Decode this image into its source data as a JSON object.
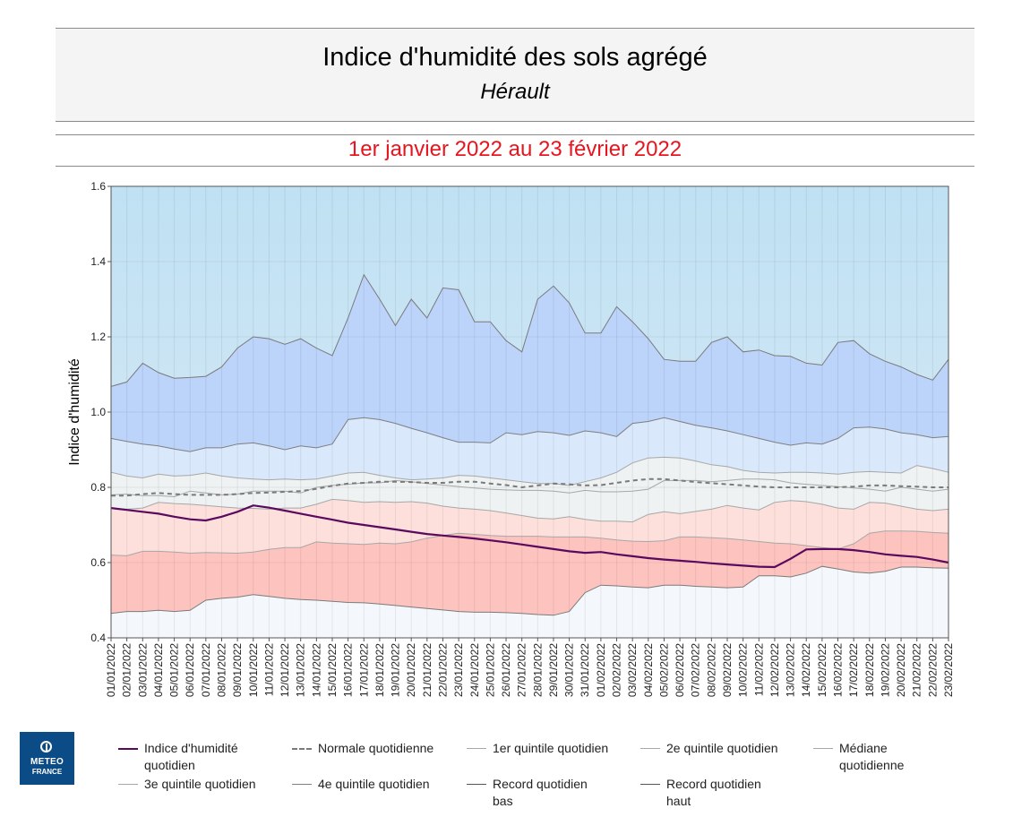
{
  "header": {
    "title": "Indice d'humidité des sols agrégé",
    "subtitle": "Hérault",
    "period": "1er janvier 2022 au 23 février 2022"
  },
  "logo": {
    "line1": "METEO",
    "line2": "FRANCE"
  },
  "colors": {
    "index": "#5a0a5e",
    "normal": "#7a7a7a",
    "band_record_low": "#f4f7fb",
    "band_q1": "#fdc3bf",
    "band_q2": "#fde0dc",
    "band_median": "#eef2f2",
    "band_q3": "#d9e8fb",
    "band_q4": "#bcd3fa",
    "band_record_high_top": "#bfe1f3",
    "band_record_high_bottom": "#dbeaf5"
  },
  "chart_data": {
    "type": "area",
    "ylabel": "Indice d'humidité",
    "ylim": [
      0.4,
      1.6
    ],
    "yticks": [
      "0.4",
      "0.6",
      "0.8",
      "1.0",
      "1.2",
      "1.4",
      "1.6"
    ],
    "x": [
      "01/01/2022",
      "02/01/2022",
      "03/01/2022",
      "04/01/2022",
      "05/01/2022",
      "06/01/2022",
      "07/01/2022",
      "08/01/2022",
      "09/01/2022",
      "10/01/2022",
      "11/01/2022",
      "12/01/2022",
      "13/01/2022",
      "14/01/2022",
      "15/01/2022",
      "16/01/2022",
      "17/01/2022",
      "18/01/2022",
      "19/01/2022",
      "20/01/2022",
      "21/01/2022",
      "22/01/2022",
      "23/01/2022",
      "24/01/2022",
      "25/01/2022",
      "26/01/2022",
      "27/01/2022",
      "28/01/2022",
      "29/01/2022",
      "30/01/2022",
      "31/01/2022",
      "01/02/2022",
      "02/02/2022",
      "03/02/2022",
      "04/02/2022",
      "05/02/2022",
      "06/02/2022",
      "07/02/2022",
      "08/02/2022",
      "09/02/2022",
      "10/02/2022",
      "11/02/2022",
      "12/02/2022",
      "13/02/2022",
      "14/02/2022",
      "15/02/2022",
      "16/02/2022",
      "17/02/2022",
      "18/02/2022",
      "19/02/2022",
      "20/02/2022",
      "21/02/2022",
      "22/02/2022",
      "23/02/2022"
    ],
    "series": [
      {
        "name": "Record quotidien bas",
        "key": "record_low",
        "values": [
          0.465,
          0.47,
          0.47,
          0.473,
          0.47,
          0.473,
          0.5,
          0.505,
          0.508,
          0.515,
          0.51,
          0.505,
          0.502,
          0.5,
          0.497,
          0.494,
          0.493,
          0.49,
          0.486,
          0.482,
          0.478,
          0.474,
          0.47,
          0.468,
          0.468,
          0.467,
          0.465,
          0.462,
          0.46,
          0.47,
          0.52,
          0.54,
          0.538,
          0.535,
          0.533,
          0.54,
          0.54,
          0.537,
          0.535,
          0.533,
          0.535,
          0.565,
          0.565,
          0.562,
          0.572,
          0.59,
          0.583,
          0.575,
          0.572,
          0.577,
          0.588,
          0.588,
          0.586,
          0.585
        ]
      },
      {
        "name": "1er quintile quotidien",
        "key": "q1",
        "values": [
          0.62,
          0.618,
          0.63,
          0.63,
          0.628,
          0.625,
          0.627,
          0.626,
          0.625,
          0.628,
          0.635,
          0.64,
          0.64,
          0.655,
          0.652,
          0.65,
          0.648,
          0.652,
          0.65,
          0.655,
          0.665,
          0.672,
          0.678,
          0.675,
          0.672,
          0.67,
          0.67,
          0.67,
          0.668,
          0.668,
          0.668,
          0.665,
          0.66,
          0.657,
          0.656,
          0.658,
          0.668,
          0.668,
          0.666,
          0.664,
          0.66,
          0.656,
          0.652,
          0.65,
          0.645,
          0.64,
          0.636,
          0.65,
          0.678,
          0.684,
          0.684,
          0.683,
          0.68,
          0.678
        ]
      },
      {
        "name": "2e quintile quotidien",
        "key": "q2",
        "values": [
          0.745,
          0.742,
          0.745,
          0.76,
          0.757,
          0.755,
          0.752,
          0.748,
          0.745,
          0.744,
          0.742,
          0.745,
          0.745,
          0.755,
          0.768,
          0.765,
          0.76,
          0.762,
          0.76,
          0.762,
          0.758,
          0.75,
          0.745,
          0.742,
          0.738,
          0.732,
          0.725,
          0.718,
          0.716,
          0.722,
          0.715,
          0.71,
          0.71,
          0.708,
          0.728,
          0.735,
          0.73,
          0.736,
          0.742,
          0.752,
          0.745,
          0.74,
          0.76,
          0.765,
          0.762,
          0.755,
          0.745,
          0.742,
          0.76,
          0.758,
          0.75,
          0.742,
          0.738,
          0.742
        ]
      },
      {
        "name": "Médiane quotidienne",
        "key": "median",
        "values": [
          0.78,
          0.782,
          0.778,
          0.778,
          0.775,
          0.79,
          0.785,
          0.78,
          0.782,
          0.79,
          0.79,
          0.79,
          0.785,
          0.8,
          0.805,
          0.808,
          0.812,
          0.812,
          0.818,
          0.815,
          0.81,
          0.806,
          0.802,
          0.798,
          0.795,
          0.793,
          0.792,
          0.792,
          0.79,
          0.785,
          0.792,
          0.788,
          0.788,
          0.79,
          0.795,
          0.818,
          0.818,
          0.818,
          0.815,
          0.818,
          0.822,
          0.822,
          0.82,
          0.812,
          0.808,
          0.805,
          0.802,
          0.798,
          0.795,
          0.79,
          0.8,
          0.795,
          0.79,
          0.795
        ]
      },
      {
        "name": "3e quintile quotidien",
        "key": "q3",
        "values": [
          0.84,
          0.83,
          0.825,
          0.835,
          0.83,
          0.832,
          0.838,
          0.83,
          0.825,
          0.822,
          0.82,
          0.822,
          0.82,
          0.822,
          0.83,
          0.838,
          0.84,
          0.832,
          0.825,
          0.82,
          0.822,
          0.825,
          0.832,
          0.83,
          0.825,
          0.82,
          0.815,
          0.81,
          0.81,
          0.805,
          0.815,
          0.825,
          0.84,
          0.865,
          0.878,
          0.88,
          0.878,
          0.87,
          0.86,
          0.855,
          0.845,
          0.84,
          0.838,
          0.84,
          0.84,
          0.838,
          0.835,
          0.84,
          0.842,
          0.84,
          0.838,
          0.858,
          0.85,
          0.84
        ]
      },
      {
        "name": "4e quintile quotidien",
        "key": "q4",
        "values": [
          0.93,
          0.922,
          0.915,
          0.91,
          0.902,
          0.895,
          0.905,
          0.905,
          0.915,
          0.918,
          0.91,
          0.9,
          0.91,
          0.905,
          0.915,
          0.98,
          0.985,
          0.98,
          0.97,
          0.957,
          0.945,
          0.932,
          0.92,
          0.92,
          0.918,
          0.945,
          0.94,
          0.948,
          0.945,
          0.938,
          0.95,
          0.945,
          0.935,
          0.97,
          0.975,
          0.985,
          0.975,
          0.965,
          0.958,
          0.95,
          0.94,
          0.93,
          0.92,
          0.912,
          0.918,
          0.915,
          0.93,
          0.958,
          0.96,
          0.955,
          0.945,
          0.94,
          0.932,
          0.935
        ]
      },
      {
        "name": "Record quotidien haut",
        "key": "record_high",
        "values": [
          1.068,
          1.08,
          1.13,
          1.105,
          1.09,
          1.092,
          1.095,
          1.12,
          1.17,
          1.2,
          1.195,
          1.18,
          1.195,
          1.17,
          1.15,
          1.25,
          1.365,
          1.3,
          1.23,
          1.3,
          1.25,
          1.33,
          1.325,
          1.24,
          1.24,
          1.19,
          1.16,
          1.3,
          1.335,
          1.29,
          1.21,
          1.21,
          1.28,
          1.24,
          1.195,
          1.14,
          1.135,
          1.135,
          1.185,
          1.2,
          1.16,
          1.165,
          1.15,
          1.148,
          1.13,
          1.125,
          1.185,
          1.19,
          1.155,
          1.135,
          1.12,
          1.1,
          1.085,
          1.14
        ]
      },
      {
        "name": "Normale quotidienne",
        "key": "normal",
        "values": [
          0.778,
          0.778,
          0.782,
          0.785,
          0.782,
          0.78,
          0.78,
          0.78,
          0.782,
          0.785,
          0.786,
          0.788,
          0.79,
          0.796,
          0.804,
          0.81,
          0.812,
          0.815,
          0.815,
          0.814,
          0.812,
          0.812,
          0.815,
          0.815,
          0.81,
          0.806,
          0.8,
          0.805,
          0.81,
          0.808,
          0.805,
          0.806,
          0.812,
          0.818,
          0.822,
          0.822,
          0.818,
          0.814,
          0.811,
          0.808,
          0.805,
          0.802,
          0.8,
          0.8,
          0.8,
          0.8,
          0.8,
          0.802,
          0.805,
          0.805,
          0.803,
          0.802,
          0.8,
          0.8
        ]
      },
      {
        "name": "Indice d'humidité quotidien",
        "key": "index",
        "values": [
          0.745,
          0.74,
          0.735,
          0.73,
          0.722,
          0.715,
          0.712,
          0.722,
          0.735,
          0.752,
          0.746,
          0.738,
          0.73,
          0.722,
          0.714,
          0.706,
          0.7,
          0.694,
          0.688,
          0.682,
          0.676,
          0.672,
          0.668,
          0.664,
          0.659,
          0.654,
          0.648,
          0.642,
          0.636,
          0.63,
          0.626,
          0.628,
          0.622,
          0.617,
          0.612,
          0.608,
          0.605,
          0.602,
          0.598,
          0.595,
          0.592,
          0.589,
          0.588,
          0.61,
          0.635,
          0.636,
          0.636,
          0.633,
          0.628,
          0.622,
          0.618,
          0.615,
          0.608,
          0.6
        ]
      }
    ],
    "legend_position": "bottom",
    "grid": true
  },
  "legend": [
    {
      "key": "index",
      "label": "Indice d'humidité quotidien",
      "label_lines": [
        "Indice d'humidité",
        "quotidien"
      ]
    },
    {
      "key": "normal",
      "label": "Normale quotidienne",
      "label_lines": [
        "Normale quotidienne"
      ]
    },
    {
      "key": "q1",
      "label": "1er quintile quotidien",
      "label_lines": [
        "1er quintile quotidien"
      ]
    },
    {
      "key": "q2",
      "label": "2e quintile quotidien",
      "label_lines": [
        "2e quintile quotidien"
      ]
    },
    {
      "key": "median",
      "label": "Médiane quotidienne",
      "label_lines": [
        "Médiane",
        "quotidienne"
      ]
    },
    {
      "key": "q3",
      "label": "3e quintile quotidien",
      "label_lines": [
        "3e quintile quotidien"
      ]
    },
    {
      "key": "q4",
      "label": "4e quintile quotidien",
      "label_lines": [
        "4e quintile quotidien"
      ]
    },
    {
      "key": "record_low",
      "label": "Record quotidien bas",
      "label_lines": [
        "Record quotidien",
        "bas"
      ]
    },
    {
      "key": "record_high",
      "label": "Record quotidien haut",
      "label_lines": [
        "Record quotidien",
        "haut"
      ]
    }
  ]
}
